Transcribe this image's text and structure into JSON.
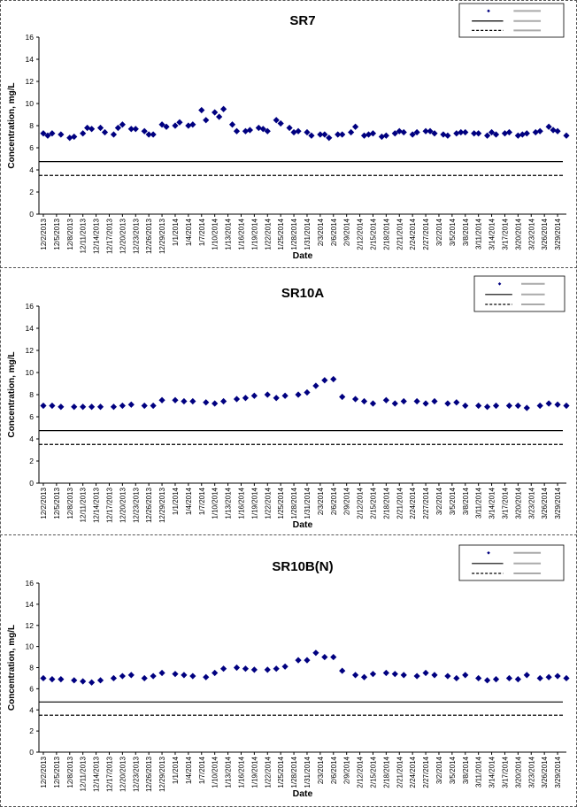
{
  "colors": {
    "marker": "#000080",
    "line": "#000000",
    "axis": "#000000",
    "background": "#ffffff"
  },
  "chart_data": [
    {
      "type": "scatter",
      "title": "SR7",
      "xlabel": "Date",
      "ylabel": "Concentration, mg/L",
      "ylim": [
        0,
        16
      ],
      "yticks": [
        0,
        2,
        4,
        6,
        8,
        10,
        12,
        14,
        16
      ],
      "xticks": [
        "12/2/2013",
        "12/5/2013",
        "12/8/2013",
        "12/11/2013",
        "12/14/2013",
        "12/17/2013",
        "12/20/2013",
        "12/23/2013",
        "12/26/2013",
        "12/29/2013",
        "1/1/2014",
        "1/4/2014",
        "1/7/2014",
        "1/10/2014",
        "1/13/2014",
        "1/16/2014",
        "1/19/2014",
        "1/22/2014",
        "1/25/2014",
        "1/28/2014",
        "1/31/2014",
        "2/3/2014",
        "2/6/2014",
        "2/9/2014",
        "2/12/2014",
        "2/15/2014",
        "2/18/2014",
        "2/21/2014",
        "2/24/2014",
        "2/27/2014",
        "3/2/2014",
        "3/5/2014",
        "3/8/2014",
        "3/11/2014",
        "3/14/2014",
        "3/17/2014",
        "3/20/2014",
        "3/23/2014",
        "3/26/2014",
        "3/29/2014"
      ],
      "grid": false,
      "legend_position": "top-right",
      "series": [
        {
          "type": "scatter",
          "x": [
            "12/2/2013",
            "12/3/2013",
            "12/4/2013",
            "12/6/2013",
            "12/8/2013",
            "12/9/2013",
            "12/11/2013",
            "12/12/2013",
            "12/13/2013",
            "12/15/2013",
            "12/16/2013",
            "12/18/2013",
            "12/19/2013",
            "12/20/2013",
            "12/22/2013",
            "12/23/2013",
            "12/25/2013",
            "12/26/2013",
            "12/27/2013",
            "12/29/2013",
            "12/30/2013",
            "1/1/2014",
            "1/2/2014",
            "1/4/2014",
            "1/5/2014",
            "1/7/2014",
            "1/8/2014",
            "1/10/2014",
            "1/11/2014",
            "1/12/2014",
            "1/14/2014",
            "1/15/2014",
            "1/17/2014",
            "1/18/2014",
            "1/20/2014",
            "1/21/2014",
            "1/22/2014",
            "1/24/2014",
            "1/25/2014",
            "1/27/2014",
            "1/28/2014",
            "1/29/2014",
            "1/31/2014",
            "2/1/2014",
            "2/3/2014",
            "2/4/2014",
            "2/5/2014",
            "2/7/2014",
            "2/8/2014",
            "2/10/2014",
            "2/11/2014",
            "2/13/2014",
            "2/14/2014",
            "2/15/2014",
            "2/17/2014",
            "2/18/2014",
            "2/20/2014",
            "2/21/2014",
            "2/22/2014",
            "2/24/2014",
            "2/25/2014",
            "2/27/2014",
            "2/28/2014",
            "3/1/2014",
            "3/3/2014",
            "3/4/2014",
            "3/6/2014",
            "3/7/2014",
            "3/8/2014",
            "3/10/2014",
            "3/11/2014",
            "3/13/2014",
            "3/14/2014",
            "3/15/2014",
            "3/17/2014",
            "3/18/2014",
            "3/20/2014",
            "3/21/2014",
            "3/22/2014",
            "3/24/2014",
            "3/25/2014",
            "3/27/2014",
            "3/28/2014",
            "3/29/2014",
            "3/31/2014"
          ],
          "y": [
            7.3,
            7.1,
            7.3,
            7.2,
            6.9,
            7.0,
            7.3,
            7.8,
            7.7,
            7.8,
            7.4,
            7.2,
            7.8,
            8.1,
            7.7,
            7.7,
            7.5,
            7.2,
            7.2,
            8.1,
            7.9,
            8.0,
            8.3,
            8.0,
            8.1,
            9.4,
            8.5,
            9.2,
            8.8,
            9.5,
            8.1,
            7.5,
            7.5,
            7.6,
            7.8,
            7.7,
            7.5,
            8.5,
            8.2,
            7.8,
            7.4,
            7.5,
            7.4,
            7.1,
            7.2,
            7.2,
            6.9,
            7.2,
            7.2,
            7.4,
            7.9,
            7.1,
            7.2,
            7.3,
            7.0,
            7.1,
            7.3,
            7.5,
            7.4,
            7.2,
            7.4,
            7.5,
            7.5,
            7.3,
            7.2,
            7.1,
            7.3,
            7.4,
            7.4,
            7.3,
            7.3,
            7.1,
            7.4,
            7.2,
            7.3,
            7.4,
            7.1,
            7.2,
            7.3,
            7.4,
            7.5,
            7.9,
            7.6,
            7.5,
            7.1
          ],
          "marker": "diamond"
        },
        {
          "type": "line",
          "y": 4.75,
          "style": "solid"
        },
        {
          "type": "line",
          "y": 3.5,
          "style": "dashed"
        }
      ]
    },
    {
      "type": "scatter",
      "title": "SR10A",
      "xlabel": "Date",
      "ylabel": "Concentration, mg/L",
      "ylim": [
        0,
        16
      ],
      "yticks": [
        0,
        2,
        4,
        6,
        8,
        10,
        12,
        14,
        16
      ],
      "xticks": [
        "12/2/2013",
        "12/5/2013",
        "12/8/2013",
        "12/11/2013",
        "12/14/2013",
        "12/17/2013",
        "12/20/2013",
        "12/23/2013",
        "12/26/2013",
        "12/29/2013",
        "1/1/2014",
        "1/4/2014",
        "1/7/2014",
        "1/10/2014",
        "1/13/2014",
        "1/16/2014",
        "1/19/2014",
        "1/22/2014",
        "1/25/2014",
        "1/28/2014",
        "1/31/2014",
        "2/3/2014",
        "2/6/2014",
        "2/9/2014",
        "2/12/2014",
        "2/15/2014",
        "2/18/2014",
        "2/21/2014",
        "2/24/2014",
        "2/27/2014",
        "3/2/2014",
        "3/5/2014",
        "3/8/2014",
        "3/11/2014",
        "3/14/2014",
        "3/17/2014",
        "3/20/2014",
        "3/23/2014",
        "3/26/2014",
        "3/29/2014"
      ],
      "grid": false,
      "legend_position": "top-right",
      "series": [
        {
          "type": "scatter",
          "x": [
            "12/2/2013",
            "12/4/2013",
            "12/6/2013",
            "12/9/2013",
            "12/11/2013",
            "12/13/2013",
            "12/15/2013",
            "12/18/2013",
            "12/20/2013",
            "12/22/2013",
            "12/25/2013",
            "12/27/2013",
            "12/29/2013",
            "1/1/2014",
            "1/3/2014",
            "1/5/2014",
            "1/8/2014",
            "1/10/2014",
            "1/12/2014",
            "1/15/2014",
            "1/17/2014",
            "1/19/2014",
            "1/22/2014",
            "1/24/2014",
            "1/26/2014",
            "1/29/2014",
            "1/31/2014",
            "2/2/2014",
            "2/4/2014",
            "2/6/2014",
            "2/8/2014",
            "2/11/2014",
            "2/13/2014",
            "2/15/2014",
            "2/18/2014",
            "2/20/2014",
            "2/22/2014",
            "2/25/2014",
            "2/27/2014",
            "3/1/2014",
            "3/4/2014",
            "3/6/2014",
            "3/8/2014",
            "3/11/2014",
            "3/13/2014",
            "3/15/2014",
            "3/18/2014",
            "3/20/2014",
            "3/22/2014",
            "3/25/2014",
            "3/27/2014",
            "3/29/2014",
            "3/31/2014"
          ],
          "y": [
            7.0,
            7.0,
            6.9,
            6.9,
            6.9,
            6.9,
            6.9,
            6.9,
            7.0,
            7.1,
            7.0,
            7.0,
            7.5,
            7.5,
            7.4,
            7.4,
            7.3,
            7.2,
            7.4,
            7.6,
            7.7,
            7.9,
            8.0,
            7.7,
            7.9,
            8.0,
            8.2,
            8.8,
            9.3,
            9.4,
            7.8,
            7.6,
            7.4,
            7.2,
            7.5,
            7.2,
            7.4,
            7.4,
            7.2,
            7.4,
            7.2,
            7.3,
            7.0,
            7.0,
            6.9,
            7.0,
            7.0,
            7.0,
            6.8,
            7.0,
            7.2,
            7.1,
            7.0
          ],
          "marker": "diamond"
        },
        {
          "type": "line",
          "y": 4.75,
          "style": "solid"
        },
        {
          "type": "line",
          "y": 3.5,
          "style": "dashed"
        }
      ]
    },
    {
      "type": "scatter",
      "title": "SR10B(N)",
      "xlabel": "Date",
      "ylabel": "Concentration, mg/L",
      "ylim": [
        0,
        16
      ],
      "yticks": [
        0,
        2,
        4,
        6,
        8,
        10,
        12,
        14,
        16
      ],
      "xticks": [
        "12/2/2013",
        "12/5/2013",
        "12/8/2013",
        "12/11/2013",
        "12/14/2013",
        "12/17/2013",
        "12/20/2013",
        "12/23/2013",
        "12/26/2013",
        "12/29/2013",
        "1/1/2014",
        "1/4/2014",
        "1/7/2014",
        "1/10/2014",
        "1/13/2014",
        "1/16/2014",
        "1/19/2014",
        "1/22/2014",
        "1/25/2014",
        "1/28/2014",
        "1/31/2014",
        "2/3/2014",
        "2/6/2014",
        "2/9/2014",
        "2/12/2014",
        "2/15/2014",
        "2/18/2014",
        "2/21/2014",
        "2/24/2014",
        "2/27/2014",
        "3/2/2014",
        "3/5/2014",
        "3/8/2014",
        "3/11/2014",
        "3/14/2014",
        "3/17/2014",
        "3/20/2014",
        "3/23/2014",
        "3/26/2014",
        "3/29/2014"
      ],
      "grid": false,
      "legend_position": "top-right",
      "series": [
        {
          "type": "scatter",
          "x": [
            "12/2/2013",
            "12/4/2013",
            "12/6/2013",
            "12/9/2013",
            "12/11/2013",
            "12/13/2013",
            "12/15/2013",
            "12/18/2013",
            "12/20/2013",
            "12/22/2013",
            "12/25/2013",
            "12/27/2013",
            "12/29/2013",
            "1/1/2014",
            "1/3/2014",
            "1/5/2014",
            "1/8/2014",
            "1/10/2014",
            "1/12/2014",
            "1/15/2014",
            "1/17/2014",
            "1/19/2014",
            "1/22/2014",
            "1/24/2014",
            "1/26/2014",
            "1/29/2014",
            "1/31/2014",
            "2/2/2014",
            "2/4/2014",
            "2/6/2014",
            "2/8/2014",
            "2/11/2014",
            "2/13/2014",
            "2/15/2014",
            "2/18/2014",
            "2/20/2014",
            "2/22/2014",
            "2/25/2014",
            "2/27/2014",
            "3/1/2014",
            "3/4/2014",
            "3/6/2014",
            "3/8/2014",
            "3/11/2014",
            "3/13/2014",
            "3/15/2014",
            "3/18/2014",
            "3/20/2014",
            "3/22/2014",
            "3/25/2014",
            "3/27/2014",
            "3/29/2014",
            "3/31/2014"
          ],
          "y": [
            7.0,
            6.9,
            6.9,
            6.8,
            6.7,
            6.6,
            6.8,
            7.0,
            7.2,
            7.3,
            7.0,
            7.2,
            7.5,
            7.4,
            7.3,
            7.2,
            7.1,
            7.5,
            7.9,
            8.0,
            7.9,
            7.8,
            7.8,
            7.9,
            8.1,
            8.7,
            8.7,
            9.4,
            9.0,
            9.0,
            7.7,
            7.3,
            7.1,
            7.4,
            7.5,
            7.4,
            7.3,
            7.2,
            7.5,
            7.3,
            7.2,
            7.0,
            7.3,
            7.0,
            6.8,
            6.9,
            7.0,
            6.9,
            7.3,
            7.0,
            7.1,
            7.2,
            7.0
          ],
          "marker": "diamond"
        },
        {
          "type": "line",
          "y": 4.75,
          "style": "solid"
        },
        {
          "type": "line",
          "y": 3.5,
          "style": "dashed"
        }
      ]
    }
  ]
}
